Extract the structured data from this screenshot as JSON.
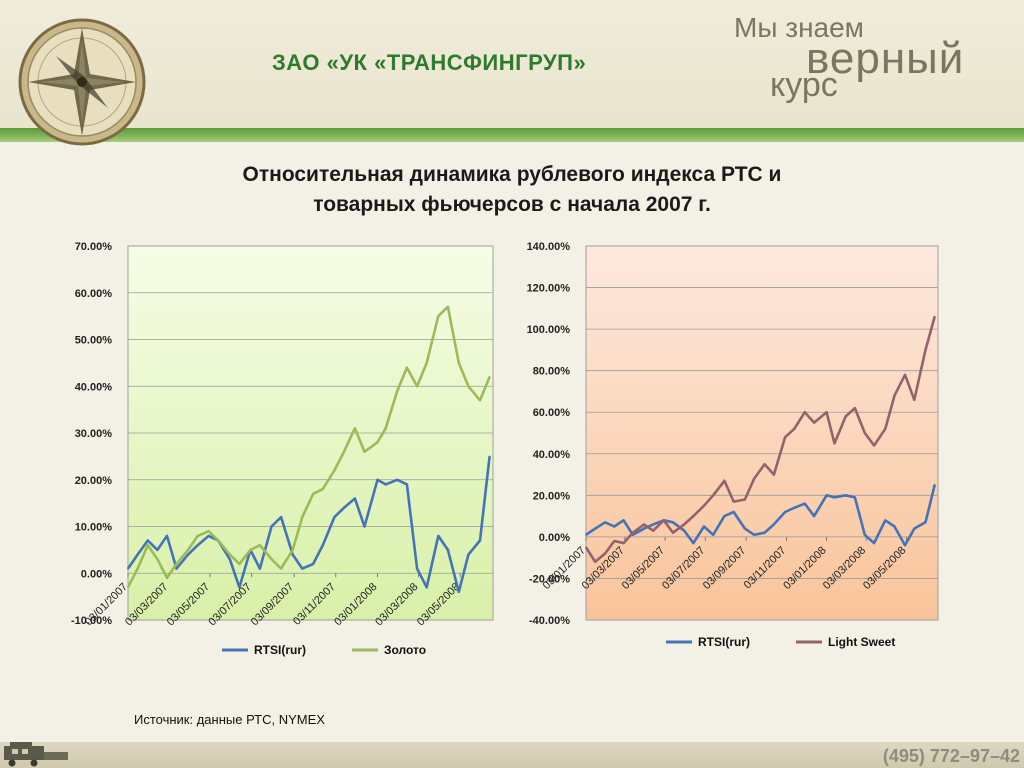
{
  "header": {
    "company": "ЗАО «УК «ТРАНСФИНГРУП»",
    "slogan": {
      "line1": "Мы знаем",
      "line2": "верный",
      "line3": "курс"
    }
  },
  "slide": {
    "title_line1": "Относительная динамика рублевого индекса РТС и",
    "title_line2": "товарных фьючерсов с начала 2007 г.",
    "source": "Источник: данные РТС, NYMEX"
  },
  "footer": {
    "phone": "(495) 772–97–42"
  },
  "colors": {
    "rtsi": "#4573b8",
    "gold": "#9bbb59",
    "oil": "#93626b"
  },
  "chart_data": [
    {
      "type": "line",
      "ylim": [
        -10,
        70
      ],
      "yticks": [
        "-10.00%",
        "0.00%",
        "10.00%",
        "20.00%",
        "30.00%",
        "40.00%",
        "50.00%",
        "60.00%",
        "70.00%"
      ],
      "xticks": [
        "03/01/2007",
        "03/03/2007",
        "03/05/2007",
        "03/07/2007",
        "03/09/2007",
        "03/11/2007",
        "03/01/2008",
        "03/03/2008",
        "03/05/2008"
      ],
      "x": [
        "2007-01-03",
        "2007-01-17",
        "2007-02-01",
        "2007-02-15",
        "2007-03-01",
        "2007-03-15",
        "2007-04-01",
        "2007-04-15",
        "2007-05-01",
        "2007-05-15",
        "2007-06-01",
        "2007-06-15",
        "2007-07-01",
        "2007-07-15",
        "2007-08-01",
        "2007-08-15",
        "2007-09-01",
        "2007-09-15",
        "2007-10-01",
        "2007-10-15",
        "2007-11-01",
        "2007-11-15",
        "2007-12-01",
        "2007-12-15",
        "2008-01-03",
        "2008-01-15",
        "2008-02-01",
        "2008-02-15",
        "2008-03-01",
        "2008-03-15",
        "2008-04-01",
        "2008-04-15",
        "2008-05-01",
        "2008-05-15",
        "2008-06-01",
        "2008-06-15"
      ],
      "series": [
        {
          "name": "RTSI(rur)",
          "color": "#4573b8",
          "values": [
            1,
            4,
            7,
            5,
            8,
            1,
            4,
            6,
            8,
            7,
            3,
            -3,
            5,
            1,
            10,
            12,
            4,
            1,
            2,
            6,
            12,
            14,
            16,
            10,
            20,
            19,
            20,
            19,
            1,
            -3,
            8,
            5,
            -4,
            4,
            7,
            25
          ]
        },
        {
          "name": "Золото",
          "color": "#9bbb59",
          "values": [
            -3,
            1,
            6,
            3,
            -1,
            2,
            5,
            8,
            9,
            7,
            4,
            2,
            5,
            6,
            3,
            1,
            5,
            12,
            17,
            18,
            22,
            26,
            31,
            26,
            28,
            31,
            39,
            44,
            40,
            45,
            55,
            57,
            45,
            40,
            37,
            42
          ]
        }
      ]
    },
    {
      "type": "line",
      "ylim": [
        -40,
        140
      ],
      "yticks": [
        "-40.00%",
        "-20.00%",
        "0.00%",
        "20.00%",
        "40.00%",
        "60.00%",
        "80.00%",
        "100.00%",
        "120.00%",
        "140.00%"
      ],
      "xticks": [
        "03/01/2007",
        "03/03/2007",
        "03/05/2007",
        "03/07/2007",
        "03/09/2007",
        "03/11/2007",
        "03/01/2008",
        "03/03/2008",
        "03/05/2008"
      ],
      "x": [
        "2007-01-03",
        "2007-01-17",
        "2007-02-01",
        "2007-02-15",
        "2007-03-01",
        "2007-03-15",
        "2007-04-01",
        "2007-04-15",
        "2007-05-01",
        "2007-05-15",
        "2007-06-01",
        "2007-06-15",
        "2007-07-01",
        "2007-07-15",
        "2007-08-01",
        "2007-08-15",
        "2007-09-01",
        "2007-09-15",
        "2007-10-01",
        "2007-10-15",
        "2007-11-01",
        "2007-11-15",
        "2007-12-01",
        "2007-12-15",
        "2008-01-03",
        "2008-01-15",
        "2008-02-01",
        "2008-02-15",
        "2008-03-01",
        "2008-03-15",
        "2008-04-01",
        "2008-04-15",
        "2008-05-01",
        "2008-05-15",
        "2008-06-01",
        "2008-06-15"
      ],
      "series": [
        {
          "name": "RTSI(rur)",
          "color": "#4573b8",
          "values": [
            1,
            4,
            7,
            5,
            8,
            1,
            4,
            6,
            8,
            7,
            3,
            -3,
            5,
            1,
            10,
            12,
            4,
            1,
            2,
            6,
            12,
            14,
            16,
            10,
            20,
            19,
            20,
            19,
            1,
            -3,
            8,
            5,
            -4,
            4,
            7,
            25
          ]
        },
        {
          "name": "Light Sweet",
          "color": "#93626b",
          "values": [
            -5,
            -12,
            -8,
            -2,
            -3,
            2,
            6,
            3,
            8,
            2,
            6,
            10,
            15,
            20,
            27,
            17,
            18,
            28,
            35,
            30,
            48,
            52,
            60,
            55,
            60,
            45,
            58,
            62,
            50,
            44,
            52,
            68,
            78,
            66,
            90,
            106
          ]
        }
      ]
    }
  ]
}
